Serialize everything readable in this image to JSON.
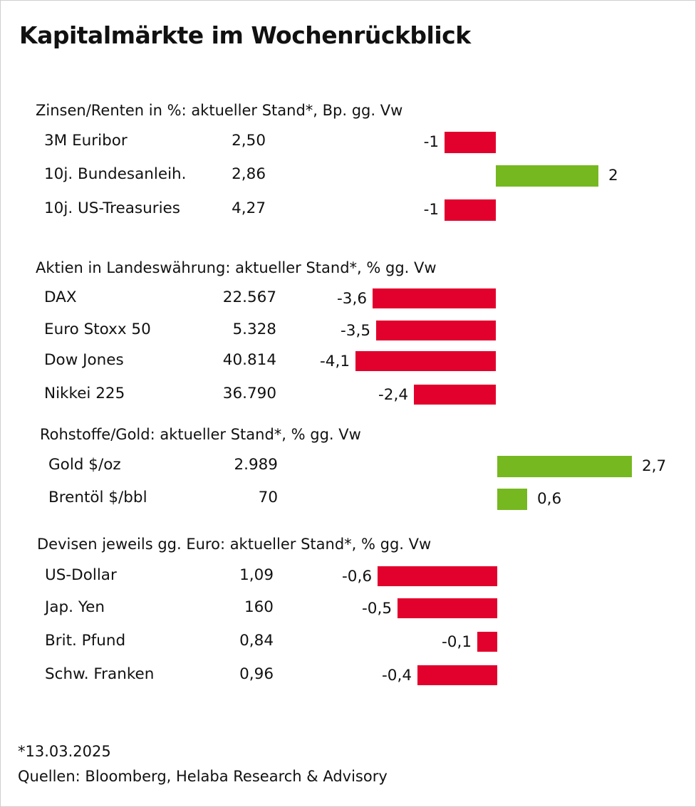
{
  "title": "Kapitalmärkte im Wochenrückblick",
  "colors": {
    "negative": "#e2002c",
    "positive": "#76b820"
  },
  "chart_data": {
    "type": "bar",
    "title": "Kapitalmärkte im Wochenrückblick",
    "sections": [
      {
        "header": "Zinsen/Renten in %: aktueller Stand*, Bp. gg. Vw",
        "rows": [
          {
            "label": "3M Euribor",
            "value": "2,50",
            "change_text": "-1",
            "change": -1
          },
          {
            "label": "10j. Bundesanleih.",
            "value": "2,86",
            "change_text": "2",
            "change": 2
          },
          {
            "label": "10j. US-Treasuries",
            "value": "4,27",
            "change_text": "-1",
            "change": -1
          }
        ]
      },
      {
        "header": "Aktien in Landeswährung: aktueller Stand*, % gg. Vw",
        "rows": [
          {
            "label": "DAX",
            "value": "22.567",
            "change_text": "-3,6",
            "change": -3.6
          },
          {
            "label": "Euro Stoxx 50",
            "value": "5.328",
            "change_text": "-3,5",
            "change": -3.5
          },
          {
            "label": "Dow Jones",
            "value": "40.814",
            "change_text": "-4,1",
            "change": -4.1
          },
          {
            "label": "Nikkei 225",
            "value": "36.790",
            "change_text": "-2,4",
            "change": -2.4
          }
        ]
      },
      {
        "header": "Rohstoffe/Gold: aktueller Stand*, % gg. Vw",
        "rows": [
          {
            "label": "Gold $/oz",
            "value": "2.989",
            "change_text": "2,7",
            "change": 2.7
          },
          {
            "label": "Brentöl $/bbl",
            "value": "70",
            "change_text": "0,6",
            "change": 0.6
          }
        ]
      },
      {
        "header": "Devisen jeweils gg. Euro: aktueller Stand*, % gg. Vw",
        "rows": [
          {
            "label": "US-Dollar",
            "value": "1,09",
            "change_text": "-0,6",
            "change": -0.6
          },
          {
            "label": "Jap. Yen",
            "value": "160",
            "change_text": "-0,5",
            "change": -0.5
          },
          {
            "label": "Brit. Pfund",
            "value": "0,84",
            "change_text": "-0,1",
            "change": -0.1
          },
          {
            "label": "Schw. Franken",
            "value": "0,96",
            "change_text": "-0,4",
            "change": -0.4
          }
        ]
      }
    ]
  },
  "footnote": {
    "date": "*13.03.2025",
    "sources": "Quellen: Bloomberg, Helaba Research & Advisory"
  }
}
